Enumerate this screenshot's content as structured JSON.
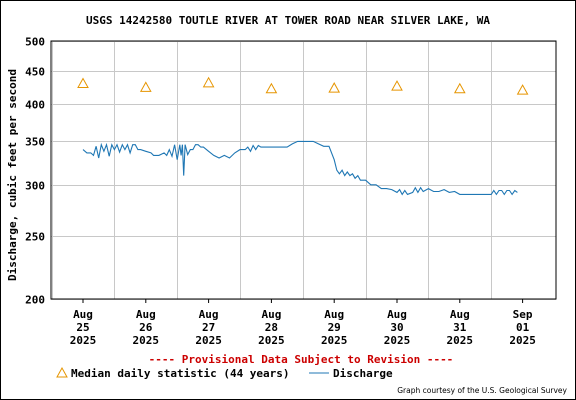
{
  "colors": {
    "discharge": "#1f77b4",
    "median": "#e69500",
    "grid": "#c8c8c8",
    "provisional": "#cc0000"
  },
  "chart_data": {
    "type": "line",
    "title": "USGS 14242580 TOUTLE RIVER AT TOWER ROAD NEAR SILVER LAKE, WA",
    "ylabel": "Discharge, cubic feet per second",
    "xlabel": "",
    "y_scale": "log",
    "ylim": [
      200,
      500
    ],
    "y_ticks": [
      200,
      250,
      300,
      350,
      400,
      450,
      500
    ],
    "y_tick_labels": [
      "200",
      "250",
      "300",
      "350",
      "400",
      "450",
      "500"
    ],
    "x_range": [
      "2025-08-25",
      "2025-09-01"
    ],
    "x_ticks": [
      {
        "date": "2025-08-25",
        "line1": "Aug",
        "line2": "25",
        "line3": "2025"
      },
      {
        "date": "2025-08-26",
        "line1": "Aug",
        "line2": "26",
        "line3": "2025"
      },
      {
        "date": "2025-08-27",
        "line1": "Aug",
        "line2": "27",
        "line3": "2025"
      },
      {
        "date": "2025-08-28",
        "line1": "Aug",
        "line2": "28",
        "line3": "2025"
      },
      {
        "date": "2025-08-29",
        "line1": "Aug",
        "line2": "29",
        "line3": "2025"
      },
      {
        "date": "2025-08-30",
        "line1": "Aug",
        "line2": "30",
        "line3": "2025"
      },
      {
        "date": "2025-08-31",
        "line1": "Aug",
        "line2": "31",
        "line3": "2025"
      },
      {
        "date": "2025-09-01",
        "line1": "Sep",
        "line2": "01",
        "line3": "2025"
      }
    ],
    "grid": true,
    "series": [
      {
        "name": "Median daily statistic (44 years)",
        "kind": "marker-triangle",
        "points": [
          {
            "date": "2025-08-25",
            "y": 430
          },
          {
            "date": "2025-08-26",
            "y": 424
          },
          {
            "date": "2025-08-27",
            "y": 431
          },
          {
            "date": "2025-08-28",
            "y": 422
          },
          {
            "date": "2025-08-29",
            "y": 423
          },
          {
            "date": "2025-08-30",
            "y": 426
          },
          {
            "date": "2025-08-31",
            "y": 422
          },
          {
            "date": "2025-09-01",
            "y": 420
          }
        ]
      },
      {
        "name": "Discharge",
        "kind": "line",
        "points": [
          {
            "date": "2025-08-25 00:00",
            "y": 340
          },
          {
            "date": "2025-08-25 01:30",
            "y": 336
          },
          {
            "date": "2025-08-25 03:00",
            "y": 336
          },
          {
            "date": "2025-08-25 04:00",
            "y": 333
          },
          {
            "date": "2025-08-25 05:00",
            "y": 344
          },
          {
            "date": "2025-08-25 06:00",
            "y": 330
          },
          {
            "date": "2025-08-25 07:00",
            "y": 346
          },
          {
            "date": "2025-08-25 08:00",
            "y": 338
          },
          {
            "date": "2025-08-25 09:00",
            "y": 346
          },
          {
            "date": "2025-08-25 10:00",
            "y": 332
          },
          {
            "date": "2025-08-25 11:00",
            "y": 346
          },
          {
            "date": "2025-08-25 12:00",
            "y": 340
          },
          {
            "date": "2025-08-25 13:00",
            "y": 346
          },
          {
            "date": "2025-08-25 14:00",
            "y": 337
          },
          {
            "date": "2025-08-25 15:00",
            "y": 346
          },
          {
            "date": "2025-08-25 16:00",
            "y": 340
          },
          {
            "date": "2025-08-25 17:00",
            "y": 346
          },
          {
            "date": "2025-08-25 18:00",
            "y": 336
          },
          {
            "date": "2025-08-25 19:00",
            "y": 346
          },
          {
            "date": "2025-08-25 20:00",
            "y": 346
          },
          {
            "date": "2025-08-25 21:00",
            "y": 340
          },
          {
            "date": "2025-08-25 22:00",
            "y": 340
          },
          {
            "date": "2025-08-26 00:00",
            "y": 338
          },
          {
            "date": "2025-08-26 02:00",
            "y": 336
          },
          {
            "date": "2025-08-26 03:00",
            "y": 333
          },
          {
            "date": "2025-08-26 05:00",
            "y": 333
          },
          {
            "date": "2025-08-26 07:00",
            "y": 336
          },
          {
            "date": "2025-08-26 08:00",
            "y": 333
          },
          {
            "date": "2025-08-26 09:00",
            "y": 340
          },
          {
            "date": "2025-08-26 10:00",
            "y": 332
          },
          {
            "date": "2025-08-26 11:00",
            "y": 346
          },
          {
            "date": "2025-08-26 12:00",
            "y": 328
          },
          {
            "date": "2025-08-26 13:00",
            "y": 346
          },
          {
            "date": "2025-08-26 13:30",
            "y": 333
          },
          {
            "date": "2025-08-26 14:00",
            "y": 346
          },
          {
            "date": "2025-08-26 14:30",
            "y": 310
          },
          {
            "date": "2025-08-26 15:00",
            "y": 346
          },
          {
            "date": "2025-08-26 16:00",
            "y": 334
          },
          {
            "date": "2025-08-26 17:00",
            "y": 340
          },
          {
            "date": "2025-08-26 18:00",
            "y": 340
          },
          {
            "date": "2025-08-26 19:00",
            "y": 346
          },
          {
            "date": "2025-08-26 20:00",
            "y": 346
          },
          {
            "date": "2025-08-26 21:00",
            "y": 343
          },
          {
            "date": "2025-08-26 22:00",
            "y": 343
          },
          {
            "date": "2025-08-27 00:00",
            "y": 338
          },
          {
            "date": "2025-08-27 02:00",
            "y": 333
          },
          {
            "date": "2025-08-27 04:00",
            "y": 330
          },
          {
            "date": "2025-08-27 06:00",
            "y": 333
          },
          {
            "date": "2025-08-27 08:00",
            "y": 330
          },
          {
            "date": "2025-08-27 10:00",
            "y": 336
          },
          {
            "date": "2025-08-27 12:00",
            "y": 340
          },
          {
            "date": "2025-08-27 14:00",
            "y": 340
          },
          {
            "date": "2025-08-27 15:00",
            "y": 343
          },
          {
            "date": "2025-08-27 16:00",
            "y": 338
          },
          {
            "date": "2025-08-27 17:00",
            "y": 345
          },
          {
            "date": "2025-08-27 18:00",
            "y": 340
          },
          {
            "date": "2025-08-27 19:00",
            "y": 345
          },
          {
            "date": "2025-08-27 20:00",
            "y": 343
          },
          {
            "date": "2025-08-28 00:00",
            "y": 343
          },
          {
            "date": "2025-08-28 06:00",
            "y": 343
          },
          {
            "date": "2025-08-28 08:00",
            "y": 347
          },
          {
            "date": "2025-08-28 10:00",
            "y": 350
          },
          {
            "date": "2025-08-28 16:00",
            "y": 350
          },
          {
            "date": "2025-08-28 18:00",
            "y": 347
          },
          {
            "date": "2025-08-28 20:00",
            "y": 344
          },
          {
            "date": "2025-08-28 22:00",
            "y": 344
          },
          {
            "date": "2025-08-29 00:00",
            "y": 328
          },
          {
            "date": "2025-08-29 01:00",
            "y": 316
          },
          {
            "date": "2025-08-29 02:00",
            "y": 312
          },
          {
            "date": "2025-08-29 03:00",
            "y": 316
          },
          {
            "date": "2025-08-29 04:00",
            "y": 310
          },
          {
            "date": "2025-08-29 05:00",
            "y": 314
          },
          {
            "date": "2025-08-29 06:00",
            "y": 310
          },
          {
            "date": "2025-08-29 07:00",
            "y": 312
          },
          {
            "date": "2025-08-29 08:00",
            "y": 307
          },
          {
            "date": "2025-08-29 09:00",
            "y": 310
          },
          {
            "date": "2025-08-29 10:00",
            "y": 305
          },
          {
            "date": "2025-08-29 12:00",
            "y": 305
          },
          {
            "date": "2025-08-29 14:00",
            "y": 300
          },
          {
            "date": "2025-08-29 16:00",
            "y": 300
          },
          {
            "date": "2025-08-29 18:00",
            "y": 296
          },
          {
            "date": "2025-08-29 20:00",
            "y": 296
          },
          {
            "date": "2025-08-29 22:00",
            "y": 295
          },
          {
            "date": "2025-08-30 00:00",
            "y": 292
          },
          {
            "date": "2025-08-30 01:00",
            "y": 295
          },
          {
            "date": "2025-08-30 02:00",
            "y": 290
          },
          {
            "date": "2025-08-30 03:00",
            "y": 294
          },
          {
            "date": "2025-08-30 04:00",
            "y": 290
          },
          {
            "date": "2025-08-30 06:00",
            "y": 292
          },
          {
            "date": "2025-08-30 07:00",
            "y": 297
          },
          {
            "date": "2025-08-30 08:00",
            "y": 292
          },
          {
            "date": "2025-08-30 09:00",
            "y": 297
          },
          {
            "date": "2025-08-30 10:00",
            "y": 293
          },
          {
            "date": "2025-08-30 12:00",
            "y": 296
          },
          {
            "date": "2025-08-30 14:00",
            "y": 293
          },
          {
            "date": "2025-08-30 16:00",
            "y": 293
          },
          {
            "date": "2025-08-30 18:00",
            "y": 295
          },
          {
            "date": "2025-08-30 20:00",
            "y": 292
          },
          {
            "date": "2025-08-30 22:00",
            "y": 293
          },
          {
            "date": "2025-08-31 00:00",
            "y": 290
          },
          {
            "date": "2025-08-31 04:00",
            "y": 290
          },
          {
            "date": "2025-08-31 08:00",
            "y": 290
          },
          {
            "date": "2025-08-31 12:00",
            "y": 290
          },
          {
            "date": "2025-08-31 13:00",
            "y": 294
          },
          {
            "date": "2025-08-31 14:00",
            "y": 290
          },
          {
            "date": "2025-08-31 15:00",
            "y": 294
          },
          {
            "date": "2025-08-31 16:00",
            "y": 294
          },
          {
            "date": "2025-08-31 17:00",
            "y": 290
          },
          {
            "date": "2025-08-31 18:00",
            "y": 294
          },
          {
            "date": "2025-08-31 19:00",
            "y": 294
          },
          {
            "date": "2025-08-31 20:00",
            "y": 290
          },
          {
            "date": "2025-08-31 21:00",
            "y": 294
          },
          {
            "date": "2025-08-31 22:00",
            "y": 292
          }
        ]
      }
    ],
    "annotations": {
      "provisional": "---- Provisional Data Subject to Revision ----",
      "legend_median": "Median daily statistic (44 years)",
      "legend_discharge": "Discharge",
      "credit": "Graph courtesy of the U.S. Geological Survey"
    }
  }
}
